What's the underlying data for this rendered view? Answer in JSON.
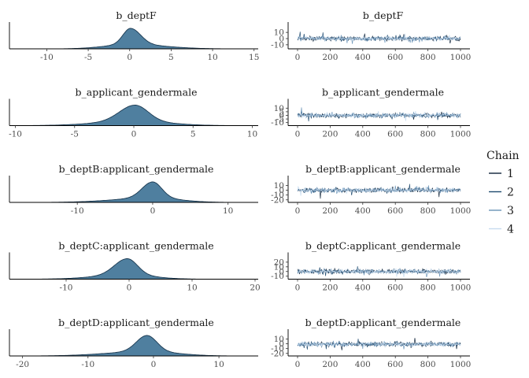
{
  "chart_data": {
    "type": "line",
    "legend": {
      "title": "Chain",
      "placement": "right",
      "entries": [
        "1",
        "2",
        "3",
        "4"
      ],
      "colors": [
        "#0d2238",
        "#1f4a6f",
        "#6a94b7",
        "#c6dbef"
      ]
    },
    "density_fill": "#4f7f9f",
    "panels": [
      {
        "parameter": "b_deptF",
        "density": {
          "xlim": [
            -14.5,
            15.5
          ],
          "ticks": [
            -10,
            -5,
            0,
            5,
            10,
            15
          ],
          "peak": 0.1,
          "spread_left": 0.9,
          "spread_right": 1.2,
          "tail_left": 3.0,
          "tail_right": 4.0
        },
        "trace": {
          "xlim": [
            0,
            1000
          ],
          "xticks": [
            0,
            200,
            400,
            600,
            800,
            1000
          ],
          "ylim": [
            -14,
            14
          ],
          "yticks": [
            10,
            0,
            -10
          ],
          "center": 0,
          "amplitude": 3.0
        }
      },
      {
        "parameter": "b_applicant_gendermale",
        "density": {
          "xlim": [
            -10.5,
            10.5
          ],
          "ticks": [
            -10,
            -5,
            0,
            5,
            10
          ],
          "peak": 0.1,
          "spread_left": 1.3,
          "spread_right": 1.1,
          "tail_left": 3.2,
          "tail_right": 2.8
        },
        "trace": {
          "xlim": [
            0,
            1000
          ],
          "xticks": [
            0,
            200,
            400,
            600,
            800,
            1000
          ],
          "ylim": [
            -12,
            12
          ],
          "yticks": [
            10,
            5,
            0,
            -5,
            -10
          ],
          "center": 0,
          "amplitude": 2.6
        }
      },
      {
        "parameter": "b_deptB:applicant_gendermale",
        "density": {
          "xlim": [
            -19,
            14
          ],
          "ticks": [
            -10,
            0,
            10
          ],
          "peak": 0.0,
          "spread_left": 1.4,
          "spread_right": 1.2,
          "tail_left": 5.0,
          "tail_right": 3.5
        },
        "trace": {
          "xlim": [
            0,
            1000
          ],
          "xticks": [
            0,
            200,
            400,
            600,
            800,
            1000
          ],
          "ylim": [
            -22,
            14
          ],
          "yticks": [
            10,
            0,
            -10,
            -20
          ],
          "center": 0,
          "amplitude": 4.0
        }
      },
      {
        "parameter": "b_deptC:applicant_gendermale",
        "density": {
          "xlim": [
            -19,
            20.5
          ],
          "ticks": [
            -10,
            0,
            10,
            20
          ],
          "peak": -0.3,
          "spread_left": 2.0,
          "spread_right": 1.6,
          "tail_left": 5.0,
          "tail_right": 4.0
        },
        "trace": {
          "xlim": [
            0,
            1000
          ],
          "xticks": [
            0,
            200,
            400,
            600,
            800,
            1000
          ],
          "ylim": [
            -13,
            24
          ],
          "yticks": [
            20,
            10,
            0,
            -10
          ],
          "center": 0,
          "amplitude": 4.0
        }
      },
      {
        "parameter": "b_deptD:applicant_gendermale",
        "density": {
          "xlim": [
            -22,
            16
          ],
          "ticks": [
            -20,
            -10,
            0,
            10
          ],
          "peak": -1.0,
          "spread_left": 1.6,
          "spread_right": 1.5,
          "tail_left": 6.0,
          "tail_right": 4.5
        },
        "trace": {
          "xlim": [
            0,
            1000
          ],
          "xticks": [
            0,
            200,
            400,
            600,
            800,
            1000
          ],
          "ylim": [
            -22,
            14
          ],
          "yticks": [
            10,
            0,
            -10,
            -20
          ],
          "center": -1,
          "amplitude": 4.0
        }
      }
    ]
  }
}
